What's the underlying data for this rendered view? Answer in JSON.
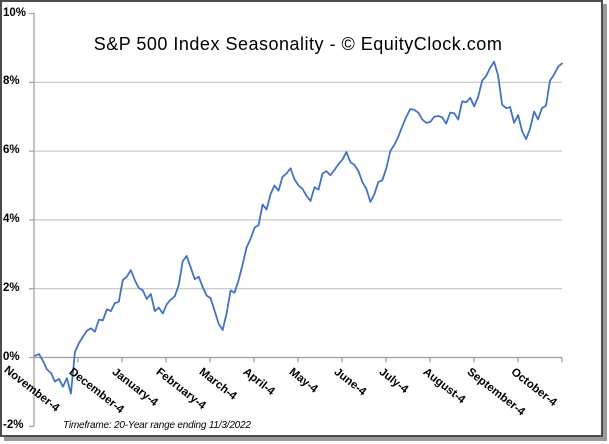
{
  "chart_data": {
    "type": "line",
    "title": "S&P 500 Index Seasonality - © EquityClock.com",
    "footnote": "Timeframe: 20-Year range ending 11/3/2022",
    "x_tick_labels": [
      "November-4",
      "December-4",
      "January-4",
      "February-4",
      "March-4",
      "April-4",
      "May-4",
      "June-4",
      "July-4",
      "August-4",
      "September-4",
      "October-4"
    ],
    "y_tick_labels": [
      "10%",
      "8%",
      "6%",
      "4%",
      "2%",
      "0%",
      "-2%"
    ],
    "y_tick_values": [
      10,
      8,
      6,
      4,
      2,
      0,
      -2
    ],
    "ylim": [
      -2,
      10
    ],
    "xlabel": "",
    "ylabel": "",
    "grid": "horizontal major gridlines every 2%",
    "legend": "none",
    "series": [
      {
        "name": "S&P 500 Index Seasonality",
        "unit": "%",
        "color": "#4472C4",
        "x_note": "daily points evenly spaced from start of November to end of October",
        "values": [
          0.05,
          0.1,
          -0.1,
          -0.35,
          -0.45,
          -0.7,
          -0.62,
          -0.85,
          -0.6,
          -1.05,
          0.15,
          0.42,
          0.6,
          0.78,
          0.85,
          0.75,
          1.1,
          1.08,
          1.4,
          1.35,
          1.58,
          1.62,
          2.25,
          2.35,
          2.54,
          2.25,
          2.02,
          1.95,
          1.7,
          1.85,
          1.35,
          1.45,
          1.28,
          1.55,
          1.68,
          1.78,
          2.1,
          2.8,
          2.95,
          2.62,
          2.28,
          2.35,
          2.05,
          1.8,
          1.72,
          1.35,
          0.98,
          0.8,
          1.28,
          1.95,
          1.88,
          2.25,
          2.7,
          3.2,
          3.45,
          3.78,
          3.85,
          4.45,
          4.3,
          4.75,
          5.0,
          4.85,
          5.25,
          5.35,
          5.5,
          5.18,
          5.0,
          4.9,
          4.7,
          4.55,
          4.95,
          4.88,
          5.35,
          5.42,
          5.3,
          5.45,
          5.62,
          5.75,
          5.97,
          5.68,
          5.6,
          5.42,
          5.1,
          4.9,
          4.52,
          4.75,
          5.1,
          5.15,
          5.5,
          6.0,
          6.18,
          6.42,
          6.72,
          7.0,
          7.22,
          7.2,
          7.12,
          6.92,
          6.82,
          6.85,
          7.0,
          7.02,
          6.98,
          6.8,
          7.12,
          7.1,
          6.92,
          7.45,
          7.42,
          7.55,
          7.3,
          7.58,
          8.05,
          8.18,
          8.42,
          8.6,
          8.2,
          7.35,
          7.25,
          7.28,
          6.82,
          7.05,
          6.58,
          6.35,
          6.65,
          7.15,
          6.92,
          7.25,
          7.32,
          8.05,
          8.22,
          8.45,
          8.55
        ]
      }
    ]
  },
  "colors": {
    "line": "#4472C4",
    "gridline": "#bdbdbd",
    "axis": "#9e9e9e",
    "text": "#000000",
    "frame_border": "#4c4c4c",
    "frame_shadow": "#9a9a9a",
    "background": "#ffffff"
  }
}
